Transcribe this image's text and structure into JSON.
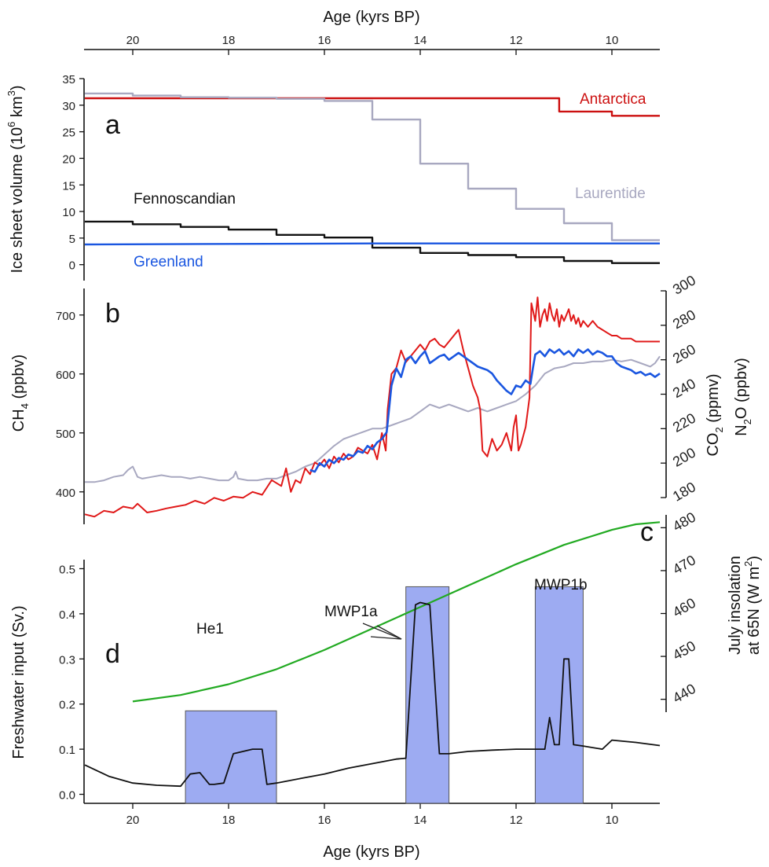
{
  "chart_data": [
    {
      "panel": "a",
      "type": "line",
      "xlabel": "Age (kyrs BP)",
      "ylabel": "Ice sheet volume (10^6 km^3)",
      "ylabel_parts": [
        "Ice sheet volume (10",
        "6",
        " km",
        "3",
        ")"
      ],
      "xlim": [
        21,
        9
      ],
      "ylim": [
        -3,
        35
      ],
      "x_ticks": [
        "20",
        "18",
        "16",
        "14",
        "12",
        "10"
      ],
      "y_ticks": [
        "35",
        "30",
        "25",
        "20",
        "15",
        "10",
        "5",
        "0"
      ],
      "series": [
        {
          "name": "Antarctica",
          "color": "#cc1010",
          "x": [
            21,
            11.1,
            11.1,
            10,
            10,
            9
          ],
          "y": [
            31.3,
            31.3,
            28.8,
            28.8,
            28.0,
            28.0
          ]
        },
        {
          "name": "Laurentide",
          "color": "#a8a8c0",
          "x": [
            21,
            20,
            20,
            19,
            19,
            18,
            18,
            17,
            17,
            16,
            16,
            15,
            15,
            14,
            14,
            13,
            13,
            12,
            12,
            11,
            11,
            10,
            10,
            9
          ],
          "y": [
            32.2,
            32.2,
            31.8,
            31.8,
            31.5,
            31.5,
            31.4,
            31.4,
            31.2,
            31.2,
            30.8,
            30.8,
            27.3,
            27.3,
            19.0,
            19.0,
            14.3,
            14.3,
            10.5,
            10.5,
            7.8,
            7.8,
            4.6,
            4.6
          ]
        },
        {
          "name": "Fennoscandian",
          "color": "#111111",
          "x": [
            21,
            20,
            20,
            19,
            19,
            18,
            18,
            17,
            17,
            16,
            16,
            15,
            15,
            14,
            14,
            13,
            13,
            12,
            12,
            11,
            11,
            10,
            10,
            9
          ],
          "y": [
            8.1,
            8.1,
            7.6,
            7.6,
            7.1,
            7.1,
            6.6,
            6.6,
            5.6,
            5.6,
            5.1,
            5.1,
            3.2,
            3.2,
            2.2,
            2.2,
            1.8,
            1.8,
            1.4,
            1.4,
            0.7,
            0.7,
            0.3,
            0.3
          ]
        },
        {
          "name": "Greenland",
          "color": "#1a56e0",
          "x": [
            21,
            15,
            9
          ],
          "y": [
            3.8,
            4.0,
            4.0
          ]
        }
      ]
    },
    {
      "panel": "b",
      "type": "line",
      "ylabel_left": "CH4 (ppbv)",
      "ylabel_left_parts": [
        "CH",
        "4",
        " (ppbv)"
      ],
      "ylabel_right_co2_parts": [
        "CO",
        "2",
        " (ppmv)"
      ],
      "ylabel_right_n2o_parts": [
        "N",
        "2",
        "O (ppbv)"
      ],
      "ylabel_right": "CO2 (ppmv) N2O (ppbv)",
      "xlim": [
        21,
        9
      ],
      "ylim_left": [
        345,
        745
      ],
      "ylim_right": [
        180,
        300
      ],
      "y_ticks_left": [
        "700",
        "600",
        "500",
        "400"
      ],
      "y_ticks_right": [
        "300",
        "280",
        "260",
        "240",
        "220",
        "200",
        "180"
      ],
      "series": [
        {
          "name": "CH4",
          "color": "#e01818",
          "axis": "left",
          "x": [
            21,
            20.8,
            20.6,
            20.4,
            20.2,
            20.0,
            19.9,
            19.7,
            19.5,
            19.3,
            19.1,
            18.9,
            18.7,
            18.5,
            18.3,
            18.1,
            17.9,
            17.7,
            17.5,
            17.3,
            17.1,
            16.9,
            16.8,
            16.7,
            16.6,
            16.5,
            16.4,
            16.3,
            16.2,
            16.1,
            16.0,
            15.9,
            15.8,
            15.7,
            15.6,
            15.5,
            15.4,
            15.3,
            15.2,
            15.1,
            15.0,
            14.9,
            14.8,
            14.72,
            14.68,
            14.6,
            14.5,
            14.4,
            14.3,
            14.2,
            14.1,
            14.0,
            13.9,
            13.8,
            13.7,
            13.6,
            13.5,
            13.4,
            13.3,
            13.2,
            13.1,
            13.0,
            12.9,
            12.8,
            12.75,
            12.7,
            12.6,
            12.5,
            12.4,
            12.3,
            12.2,
            12.1,
            12.05,
            12.0,
            11.95,
            11.9,
            11.8,
            11.72,
            11.68,
            11.6,
            11.55,
            11.5,
            11.45,
            11.4,
            11.35,
            11.3,
            11.25,
            11.2,
            11.15,
            11.1,
            11.05,
            11.0,
            10.95,
            10.9,
            10.85,
            10.8,
            10.75,
            10.7,
            10.65,
            10.6,
            10.5,
            10.4,
            10.3,
            10.2,
            10.1,
            10.0,
            9.9,
            9.8,
            9.7,
            9.6,
            9.5,
            9.4,
            9.3,
            9.2,
            9.1,
            9.0
          ],
          "y": [
            362,
            358,
            368,
            365,
            375,
            372,
            380,
            365,
            368,
            372,
            375,
            378,
            385,
            380,
            390,
            385,
            392,
            390,
            400,
            395,
            420,
            410,
            440,
            400,
            420,
            415,
            440,
            430,
            450,
            445,
            455,
            440,
            460,
            450,
            465,
            455,
            460,
            475,
            470,
            465,
            480,
            455,
            500,
            470,
            540,
            600,
            610,
            640,
            620,
            630,
            640,
            650,
            640,
            655,
            660,
            650,
            645,
            655,
            665,
            675,
            640,
            610,
            580,
            560,
            540,
            470,
            460,
            490,
            470,
            480,
            500,
            470,
            510,
            530,
            470,
            480,
            510,
            560,
            720,
            690,
            730,
            680,
            700,
            710,
            690,
            720,
            700,
            690,
            710,
            680,
            700,
            690,
            700,
            710,
            690,
            700,
            685,
            695,
            680,
            690,
            680,
            690,
            680,
            675,
            670,
            665,
            665,
            660,
            660,
            660,
            655,
            655,
            655,
            655,
            655,
            655
          ]
        },
        {
          "name": "N2O",
          "color": "#1a56e0",
          "axis": "right",
          "x": [
            16.3,
            16.2,
            16.1,
            16.0,
            15.9,
            15.8,
            15.7,
            15.6,
            15.5,
            15.4,
            15.3,
            15.2,
            15.1,
            15.0,
            14.9,
            14.8,
            14.7,
            14.6,
            14.5,
            14.4,
            14.3,
            14.2,
            14.1,
            14.0,
            13.9,
            13.8,
            13.7,
            13.6,
            13.5,
            13.4,
            13.3,
            13.2,
            13.1,
            13.0,
            12.9,
            12.8,
            12.7,
            12.6,
            12.5,
            12.4,
            12.3,
            12.2,
            12.1,
            12.0,
            11.9,
            11.8,
            11.7,
            11.65,
            11.6,
            11.5,
            11.4,
            11.3,
            11.2,
            11.1,
            11.0,
            10.9,
            10.8,
            10.7,
            10.6,
            10.5,
            10.4,
            10.3,
            10.2,
            10.1,
            10.0,
            9.9,
            9.8,
            9.7,
            9.6,
            9.5,
            9.4,
            9.3,
            9.2,
            9.1,
            9.0
          ],
          "y": [
            196,
            195,
            200,
            198,
            202,
            200,
            203,
            202,
            205,
            204,
            207,
            206,
            210,
            208,
            212,
            214,
            218,
            245,
            255,
            250,
            260,
            262,
            258,
            262,
            265,
            258,
            260,
            262,
            263,
            260,
            262,
            264,
            262,
            260,
            258,
            256,
            255,
            254,
            252,
            248,
            245,
            242,
            240,
            245,
            244,
            248,
            246,
            255,
            263,
            265,
            262,
            266,
            264,
            266,
            263,
            265,
            262,
            266,
            264,
            266,
            263,
            265,
            264,
            262,
            262,
            258,
            256,
            255,
            254,
            252,
            253,
            251,
            252,
            250,
            252
          ]
        },
        {
          "name": "CO2",
          "color": "#a8a8c0",
          "axis": "right",
          "x": [
            21,
            20.8,
            20.6,
            20.4,
            20.2,
            20.1,
            20.0,
            19.9,
            19.8,
            19.6,
            19.4,
            19.2,
            19.0,
            18.8,
            18.6,
            18.4,
            18.2,
            18.0,
            17.9,
            17.85,
            17.8,
            17.6,
            17.4,
            17.2,
            17.0,
            16.8,
            16.6,
            16.4,
            16.2,
            16.0,
            15.8,
            15.6,
            15.4,
            15.2,
            15.0,
            14.8,
            14.6,
            14.4,
            14.2,
            14.0,
            13.8,
            13.6,
            13.4,
            13.2,
            13.0,
            12.8,
            12.6,
            12.4,
            12.2,
            12.0,
            11.8,
            11.6,
            11.4,
            11.2,
            11.0,
            10.8,
            10.6,
            10.4,
            10.2,
            10.0,
            9.8,
            9.6,
            9.4,
            9.2,
            9.1,
            9.0
          ],
          "y": [
            189,
            189,
            190,
            192,
            193,
            196,
            198,
            192,
            191,
            192,
            193,
            192,
            192,
            191,
            192,
            191,
            190,
            190,
            192,
            195,
            191,
            190,
            190,
            191,
            191,
            193,
            195,
            198,
            200,
            205,
            210,
            214,
            216,
            218,
            220,
            220,
            222,
            224,
            226,
            230,
            234,
            232,
            234,
            232,
            230,
            232,
            230,
            232,
            234,
            236,
            240,
            245,
            252,
            255,
            256,
            258,
            258,
            259,
            259,
            260,
            259,
            260,
            258,
            256,
            258,
            262
          ]
        }
      ]
    },
    {
      "panel": "c",
      "type": "line",
      "ylabel": "July insolation at 65N (W m^2)",
      "ylabel_line1": "July insolation",
      "ylabel_line2_parts": [
        "at 65N (W m",
        "2",
        ")"
      ],
      "ylim": [
        437,
        483
      ],
      "y_ticks": [
        "480",
        "470",
        "460",
        "450",
        "440"
      ],
      "series": [
        {
          "name": "July insolation",
          "color": "#22aa22",
          "x": [
            20,
            19,
            18,
            17,
            16,
            15,
            14,
            13,
            12,
            11,
            10,
            9.5,
            9
          ],
          "y": [
            439.5,
            441.0,
            443.5,
            447.0,
            451.5,
            456.5,
            461.5,
            466.5,
            471.5,
            476.0,
            479.5,
            480.8,
            481.3
          ]
        }
      ]
    },
    {
      "panel": "d",
      "type": "line",
      "xlabel": "Age (kyrs BP)",
      "ylabel": "Freshwater input (Sv.)",
      "xlim": [
        21,
        9
      ],
      "ylim": [
        -0.02,
        0.52
      ],
      "x_ticks": [
        "20",
        "18",
        "16",
        "14",
        "12",
        "10"
      ],
      "y_ticks": [
        "0.5",
        "0.4",
        "0.3",
        "0.2",
        "0.1",
        "0.0"
      ],
      "series": [
        {
          "name": "Freshwater input",
          "color": "#111111",
          "x": [
            21,
            20.5,
            20,
            19.5,
            19,
            18.8,
            18.6,
            18.4,
            18.3,
            18.1,
            17.9,
            17.7,
            17.5,
            17.3,
            17.2,
            17.0,
            16.5,
            16,
            15.5,
            15,
            14.5,
            14.3,
            14.1,
            14.0,
            13.8,
            13.6,
            13.4,
            13.0,
            12.5,
            12.0,
            11.6,
            11.4,
            11.3,
            11.2,
            11.1,
            11.0,
            10.9,
            10.8,
            10.6,
            10.2,
            10.0,
            9.5,
            9.0
          ],
          "y": [
            0.065,
            0.04,
            0.025,
            0.02,
            0.018,
            0.045,
            0.048,
            0.022,
            0.022,
            0.025,
            0.09,
            0.095,
            0.1,
            0.1,
            0.022,
            0.025,
            0.035,
            0.045,
            0.058,
            0.068,
            0.078,
            0.08,
            0.42,
            0.425,
            0.42,
            0.09,
            0.09,
            0.095,
            0.098,
            0.1,
            0.1,
            0.1,
            0.17,
            0.11,
            0.11,
            0.3,
            0.3,
            0.11,
            0.107,
            0.1,
            0.12,
            0.115,
            0.108
          ]
        }
      ],
      "annotations": [
        {
          "label": "He1",
          "x0": 18.9,
          "x1": 17.0,
          "y1": 0.185
        },
        {
          "label": "MWP1a",
          "x0": 14.3,
          "x1": 13.4,
          "y1": 0.46
        },
        {
          "label": "MWP1b",
          "x0": 11.6,
          "x1": 10.6,
          "y1": 0.46
        }
      ]
    }
  ]
}
